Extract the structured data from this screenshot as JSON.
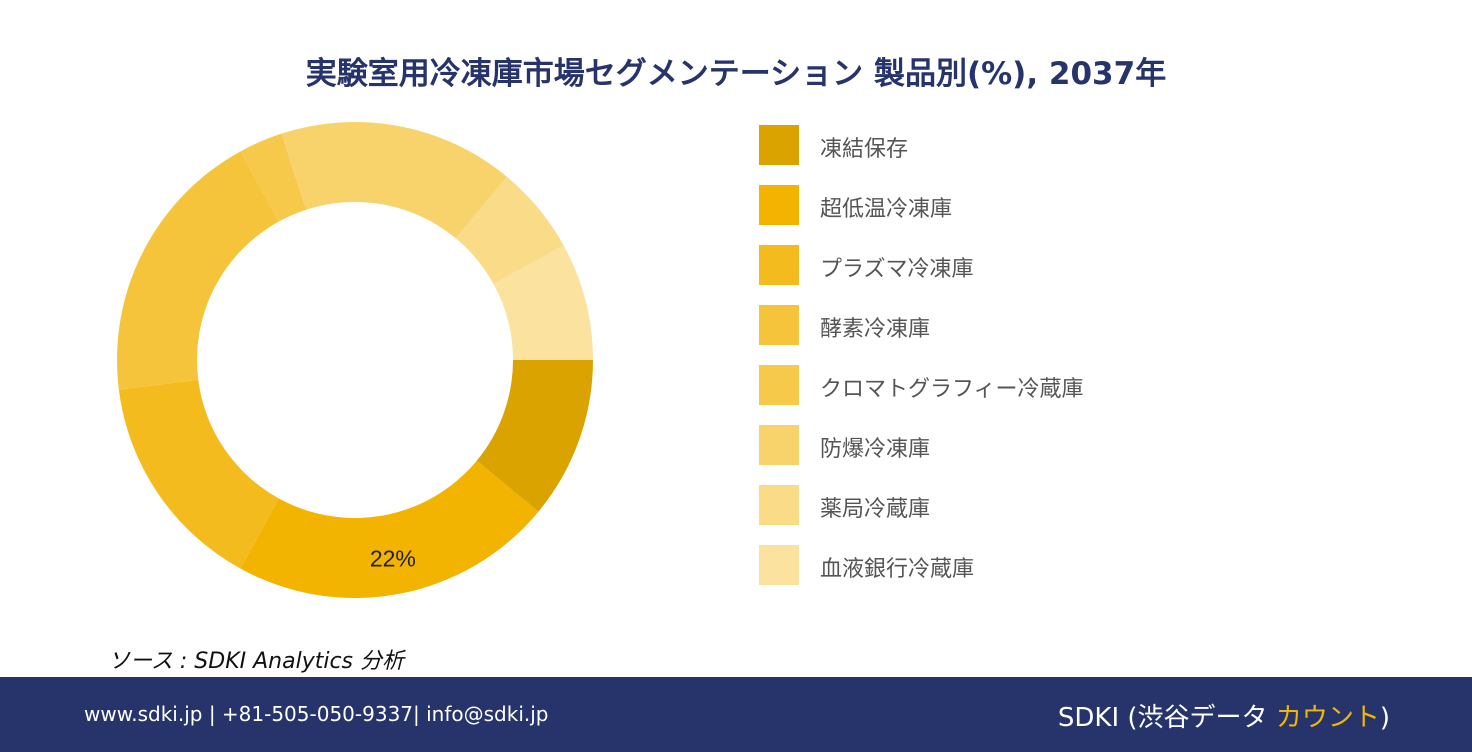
{
  "title": "実験室用冷凍庫市場セグメンテーション 製品別(%), 2037年",
  "source": "ソース : SDKI Analytics 分析",
  "footer": {
    "contact": "www.sdki.jp | +81-505-050-9337| info@sdki.jp",
    "brand_prefix": "SDKI (渋谷データ ",
    "brand_accent": "カウント",
    "brand_suffix": ")"
  },
  "colors": {
    "title": "#27336b",
    "footer_bg": "#27336b",
    "accent": "#f2b705"
  },
  "chart_data": {
    "type": "pie",
    "variant": "donut",
    "legend_position": "right",
    "categories": [
      "凍結保存",
      "超低温冷凍庫",
      "プラズマ冷凍庫",
      "酵素冷凍庫",
      "クロマトグラフィー冷蔵庫",
      "防爆冷凍庫",
      "薬局冷蔵庫",
      "血液銀行冷蔵庫"
    ],
    "values": [
      11,
      22,
      15,
      19,
      3,
      16,
      6,
      8
    ],
    "colors": [
      "#daa300",
      "#f2b400",
      "#f4bb1e",
      "#f6c43a",
      "#f7c94a",
      "#f8d36c",
      "#f9db88",
      "#fbe29e"
    ],
    "data_labels": [
      "",
      "22%",
      "",
      "",
      "",
      "",
      "",
      ""
    ]
  }
}
